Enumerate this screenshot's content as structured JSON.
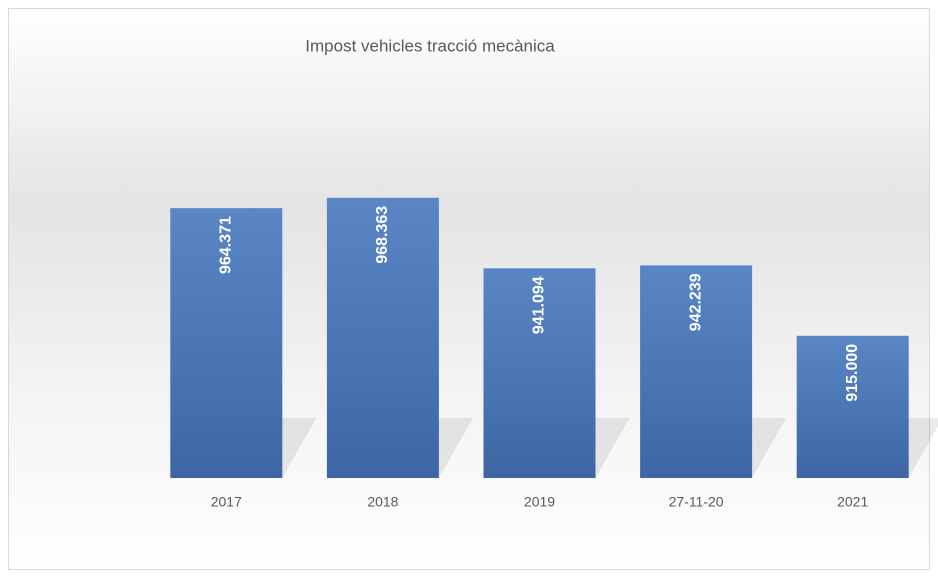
{
  "chart_data": {
    "type": "bar",
    "title": "Impost vehicles tracció mecànica",
    "categories": [
      "2017",
      "2018",
      "2019",
      "27-11-20",
      "2021"
    ],
    "values": [
      964371,
      968363,
      941094,
      942239,
      915000
    ],
    "value_labels": [
      "964.371",
      "968.363",
      "941.094",
      "942.239",
      "915.000"
    ],
    "color": "#4a76b5",
    "ylim": [
      860000,
      1000000
    ]
  }
}
